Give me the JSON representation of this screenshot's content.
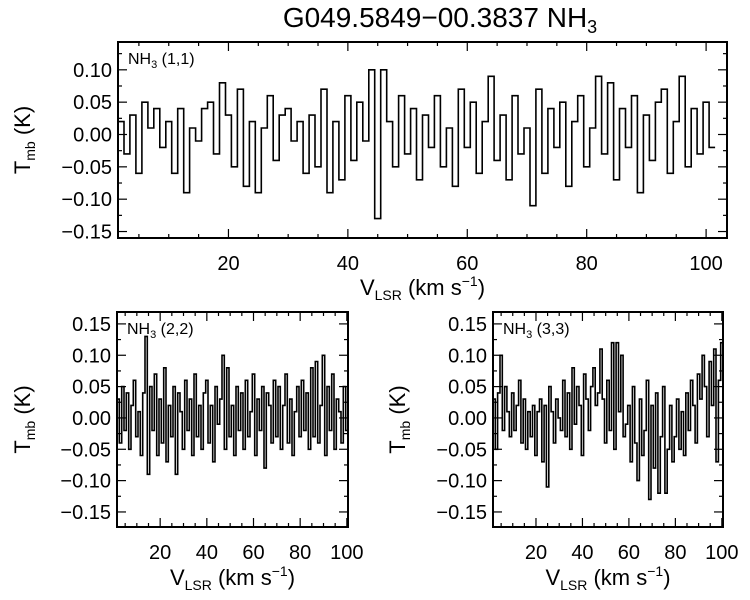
{
  "title": "G049.5849−00.3837 NH",
  "title_sub": "3",
  "chart_data": [
    {
      "type": "line",
      "step": true,
      "label_main": "NH",
      "label_sub": "3",
      "label_tail": " (1,1)",
      "xlabel": "V",
      "xlabel_sub": "LSR",
      "xlabel_tail": " (km s",
      "xlabel_sup": "−1",
      "xlabel_end": ")",
      "ylabel": "T",
      "ylabel_sub": "mb",
      "ylabel_tail": " (K)",
      "xlim": [
        1.5,
        103.5
      ],
      "ylim": [
        -0.16,
        0.143
      ],
      "xticks": [
        20,
        40,
        60,
        80,
        100
      ],
      "yticks": [
        0.1,
        0.05,
        0.0,
        -0.05,
        -0.1,
        -0.15
      ],
      "ytick_labels": [
        "0.10",
        "0.05",
        "0.00",
        "−0.05",
        "−0.10",
        "−0.15"
      ],
      "x": [
        2,
        3,
        4,
        5,
        6,
        7,
        8,
        9,
        10,
        11,
        12,
        13,
        14,
        15,
        16,
        17,
        18,
        19,
        20,
        21,
        22,
        23,
        24,
        25,
        26,
        27,
        28,
        29,
        30,
        31,
        32,
        33,
        34,
        35,
        36,
        37,
        38,
        39,
        40,
        41,
        42,
        43,
        44,
        45,
        46,
        47,
        48,
        49,
        50,
        51,
        52,
        53,
        54,
        55,
        56,
        57,
        58,
        59,
        60,
        61,
        62,
        63,
        64,
        65,
        66,
        67,
        68,
        69,
        70,
        71,
        72,
        73,
        74,
        75,
        76,
        77,
        78,
        79,
        80,
        81,
        82,
        83,
        84,
        85,
        86,
        87,
        88,
        89,
        90,
        91,
        92,
        93,
        94,
        95,
        96,
        97,
        98,
        99,
        100,
        101
      ],
      "values": [
        0.02,
        -0.03,
        0.03,
        -0.06,
        0.05,
        0.01,
        0.04,
        -0.02,
        0.02,
        -0.06,
        0.04,
        -0.09,
        0.01,
        -0.01,
        0.04,
        0.05,
        -0.03,
        0.08,
        0.03,
        -0.05,
        0.07,
        -0.08,
        0.02,
        -0.09,
        0.01,
        0.06,
        -0.04,
        0.03,
        0.04,
        -0.01,
        0.02,
        -0.06,
        0.03,
        -0.05,
        0.07,
        -0.09,
        0.02,
        -0.07,
        0.06,
        -0.04,
        0.05,
        -0.01,
        0.1,
        -0.13,
        0.1,
        0.02,
        -0.05,
        0.06,
        -0.03,
        0.04,
        -0.07,
        0.03,
        -0.02,
        0.06,
        -0.05,
        0.01,
        -0.08,
        0.07,
        -0.02,
        0.05,
        -0.06,
        0.02,
        0.09,
        -0.04,
        0.03,
        -0.07,
        0.06,
        -0.03,
        0.01,
        -0.11,
        0.07,
        -0.06,
        0.04,
        -0.02,
        0.05,
        -0.08,
        0.02,
        0.06,
        -0.05,
        0.01,
        0.09,
        -0.03,
        0.08,
        -0.07,
        0.04,
        -0.02,
        0.06,
        -0.09,
        0.03,
        -0.04,
        0.05,
        0.07,
        -0.06,
        0.02,
        0.09,
        -0.05,
        0.04,
        -0.03,
        0.05,
        -0.02
      ]
    },
    {
      "type": "line",
      "step": true,
      "label_main": "NH",
      "label_sub": "3",
      "label_tail": " (2,2)",
      "xlabel": "V",
      "xlabel_sub": "LSR",
      "xlabel_tail": " (km s",
      "xlabel_sup": "−1",
      "xlabel_end": ")",
      "ylabel": "T",
      "ylabel_sub": "mb",
      "ylabel_tail": " (K)",
      "xlim": [
        1.5,
        100.5
      ],
      "ylim": [
        -0.174,
        0.169
      ],
      "xticks": [
        20,
        40,
        60,
        80,
        100
      ],
      "yticks": [
        0.15,
        0.1,
        0.05,
        0.0,
        -0.05,
        -0.1,
        -0.15
      ],
      "ytick_labels": [
        "0.15",
        "0.10",
        "0.05",
        "0.00",
        "−0.05",
        "−0.10",
        "−0.15"
      ],
      "x": [
        2,
        3,
        4,
        5,
        6,
        7,
        8,
        9,
        10,
        11,
        12,
        13,
        14,
        15,
        16,
        17,
        18,
        19,
        20,
        21,
        22,
        23,
        24,
        25,
        26,
        27,
        28,
        29,
        30,
        31,
        32,
        33,
        34,
        35,
        36,
        37,
        38,
        39,
        40,
        41,
        42,
        43,
        44,
        45,
        46,
        47,
        48,
        49,
        50,
        51,
        52,
        53,
        54,
        55,
        56,
        57,
        58,
        59,
        60,
        61,
        62,
        63,
        64,
        65,
        66,
        67,
        68,
        69,
        70,
        71,
        72,
        73,
        74,
        75,
        76,
        77,
        78,
        79,
        80,
        81,
        82,
        83,
        84,
        85,
        86,
        87,
        88,
        89,
        90,
        91,
        92,
        93,
        94,
        95,
        96,
        97,
        98,
        99,
        100,
        101
      ],
      "values": [
        0.03,
        -0.04,
        0.05,
        -0.02,
        0.04,
        -0.05,
        0.02,
        0.06,
        -0.03,
        0.01,
        -0.06,
        0.04,
        0.13,
        -0.09,
        0.05,
        -0.02,
        0.07,
        -0.06,
        0.03,
        -0.04,
        0.08,
        -0.07,
        0.02,
        -0.03,
        0.05,
        -0.09,
        0.04,
        0.01,
        -0.05,
        0.06,
        -0.02,
        0.03,
        -0.06,
        0.07,
        -0.03,
        0.02,
        -0.05,
        0.04,
        0.06,
        -0.04,
        0.02,
        -0.07,
        0.05,
        -0.01,
        0.03,
        0.1,
        -0.05,
        0.08,
        -0.03,
        0.02,
        -0.06,
        0.05,
        -0.02,
        0.04,
        -0.05,
        0.06,
        -0.03,
        0.01,
        0.07,
        -0.06,
        0.03,
        -0.02,
        0.05,
        -0.08,
        0.04,
        0.02,
        -0.04,
        0.06,
        -0.03,
        0.05,
        -0.05,
        0.02,
        0.07,
        -0.04,
        0.03,
        -0.06,
        0.01,
        0.05,
        -0.03,
        0.06,
        -0.02,
        0.04,
        -0.05,
        0.08,
        -0.03,
        0.09,
        -0.04,
        0.02,
        0.1,
        -0.06,
        0.05,
        -0.02,
        0.07,
        -0.05,
        0.03,
        0.01,
        -0.04,
        0.05,
        -0.02,
        0.03
      ]
    },
    {
      "type": "line",
      "step": true,
      "label_main": "NH",
      "label_sub": "3",
      "label_tail": " (3,3)",
      "xlabel": "V",
      "xlabel_sub": "LSR",
      "xlabel_tail": " (km s",
      "xlabel_sup": "−1",
      "xlabel_end": ")",
      "ylabel": "T",
      "ylabel_sub": "mb",
      "ylabel_tail": " (K)",
      "xlim": [
        1.5,
        100.5
      ],
      "ylim": [
        -0.174,
        0.169
      ],
      "xticks": [
        20,
        40,
        60,
        80,
        100
      ],
      "yticks": [
        0.15,
        0.1,
        0.05,
        0.0,
        -0.05,
        -0.1,
        -0.15
      ],
      "ytick_labels": [
        "0.15",
        "0.10",
        "0.05",
        "0.00",
        "−0.05",
        "−0.10",
        "−0.15"
      ],
      "x": [
        2,
        3,
        4,
        5,
        6,
        7,
        8,
        9,
        10,
        11,
        12,
        13,
        14,
        15,
        16,
        17,
        18,
        19,
        20,
        21,
        22,
        23,
        24,
        25,
        26,
        27,
        28,
        29,
        30,
        31,
        32,
        33,
        34,
        35,
        36,
        37,
        38,
        39,
        40,
        41,
        42,
        43,
        44,
        45,
        46,
        47,
        48,
        49,
        50,
        51,
        52,
        53,
        54,
        55,
        56,
        57,
        58,
        59,
        60,
        61,
        62,
        63,
        64,
        65,
        66,
        67,
        68,
        69,
        70,
        71,
        72,
        73,
        74,
        75,
        76,
        77,
        78,
        79,
        80,
        81,
        82,
        83,
        84,
        85,
        86,
        87,
        88,
        89,
        90,
        91,
        92,
        93,
        94,
        95,
        96,
        97,
        98,
        99,
        100,
        101
      ],
      "values": [
        0.03,
        -0.05,
        0.04,
        0.1,
        -0.02,
        0.05,
        0.01,
        -0.03,
        0.04,
        -0.02,
        0.02,
        0.06,
        -0.04,
        0.03,
        -0.05,
        0.01,
        -0.03,
        0.02,
        -0.06,
        0.01,
        0.03,
        -0.07,
        0.02,
        -0.11,
        0.05,
        0.01,
        -0.04,
        0.03,
        0.0,
        -0.02,
        0.06,
        -0.03,
        0.04,
        -0.05,
        0.08,
        -0.01,
        0.05,
        0.02,
        -0.06,
        0.07,
        0.03,
        -0.02,
        0.05,
        0.08,
        0.02,
        0.04,
        0.11,
        0.03,
        -0.04,
        0.06,
        -0.02,
        0.12,
        -0.05,
        0.12,
        0.01,
        0.1,
        -0.03,
        -0.01,
        0.02,
        -0.07,
        0.05,
        -0.04,
        -0.1,
        0.03,
        -0.06,
        -0.02,
        0.06,
        -0.13,
        0.02,
        -0.08,
        0.04,
        -0.12,
        -0.03,
        0.05,
        -0.12,
        -0.05,
        0.02,
        -0.07,
        -0.03,
        0.03,
        -0.05,
        0.01,
        -0.06,
        0.04,
        -0.02,
        0.06,
        0.02,
        -0.04,
        0.07,
        0.03,
        0.1,
        0.05,
        -0.03,
        0.09,
        0.02,
        0.11,
        -0.07,
        0.06,
        0.12,
        0.04
      ]
    }
  ]
}
